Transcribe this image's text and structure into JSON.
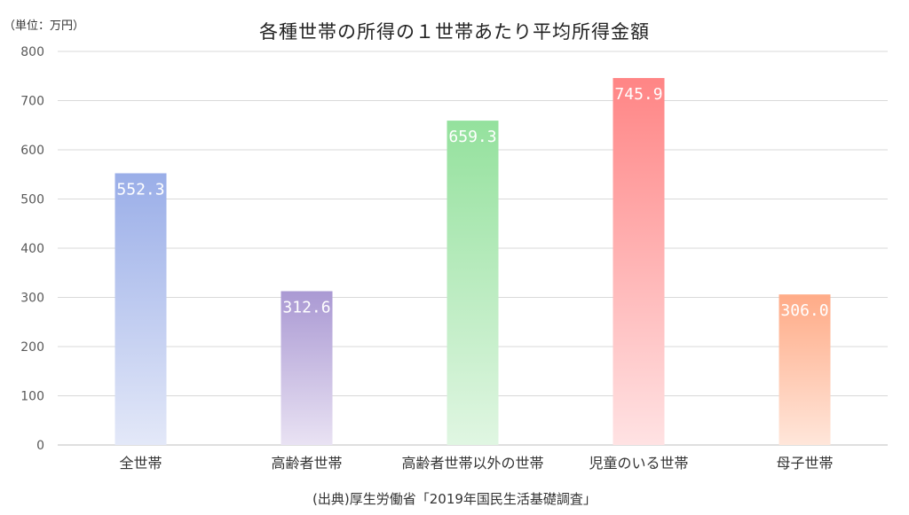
{
  "unit_label": "（単位：万円）",
  "source": "(出典)厚生労働省「2019年国民生活基礎調査」",
  "chart_data": {
    "type": "bar",
    "title": "各種世帯の所得の１世帯あたり平均所得金額",
    "ylabel": "",
    "xlabel": "",
    "ylim": [
      0,
      800
    ],
    "yticks": [
      0,
      100,
      200,
      300,
      400,
      500,
      600,
      700,
      800
    ],
    "grid": true,
    "categories": [
      "全世帯",
      "高齢者世帯",
      "高齢者世帯以外の世帯",
      "児童のいる世帯",
      "母子世帯"
    ],
    "values": [
      552.3,
      312.6,
      659.3,
      745.9,
      306.0
    ],
    "value_labels": [
      "552.3",
      "312.6",
      "659.3",
      "745.9",
      "306.0"
    ],
    "colors": [
      [
        "#9aaee8",
        "#e3e8f8"
      ],
      [
        "#aa99d3",
        "#e9e2f3"
      ],
      [
        "#94e19d",
        "#e0f6e2"
      ],
      [
        "#ff8585",
        "#ffe2e3"
      ],
      [
        "#ffab87",
        "#ffe6da"
      ]
    ]
  }
}
